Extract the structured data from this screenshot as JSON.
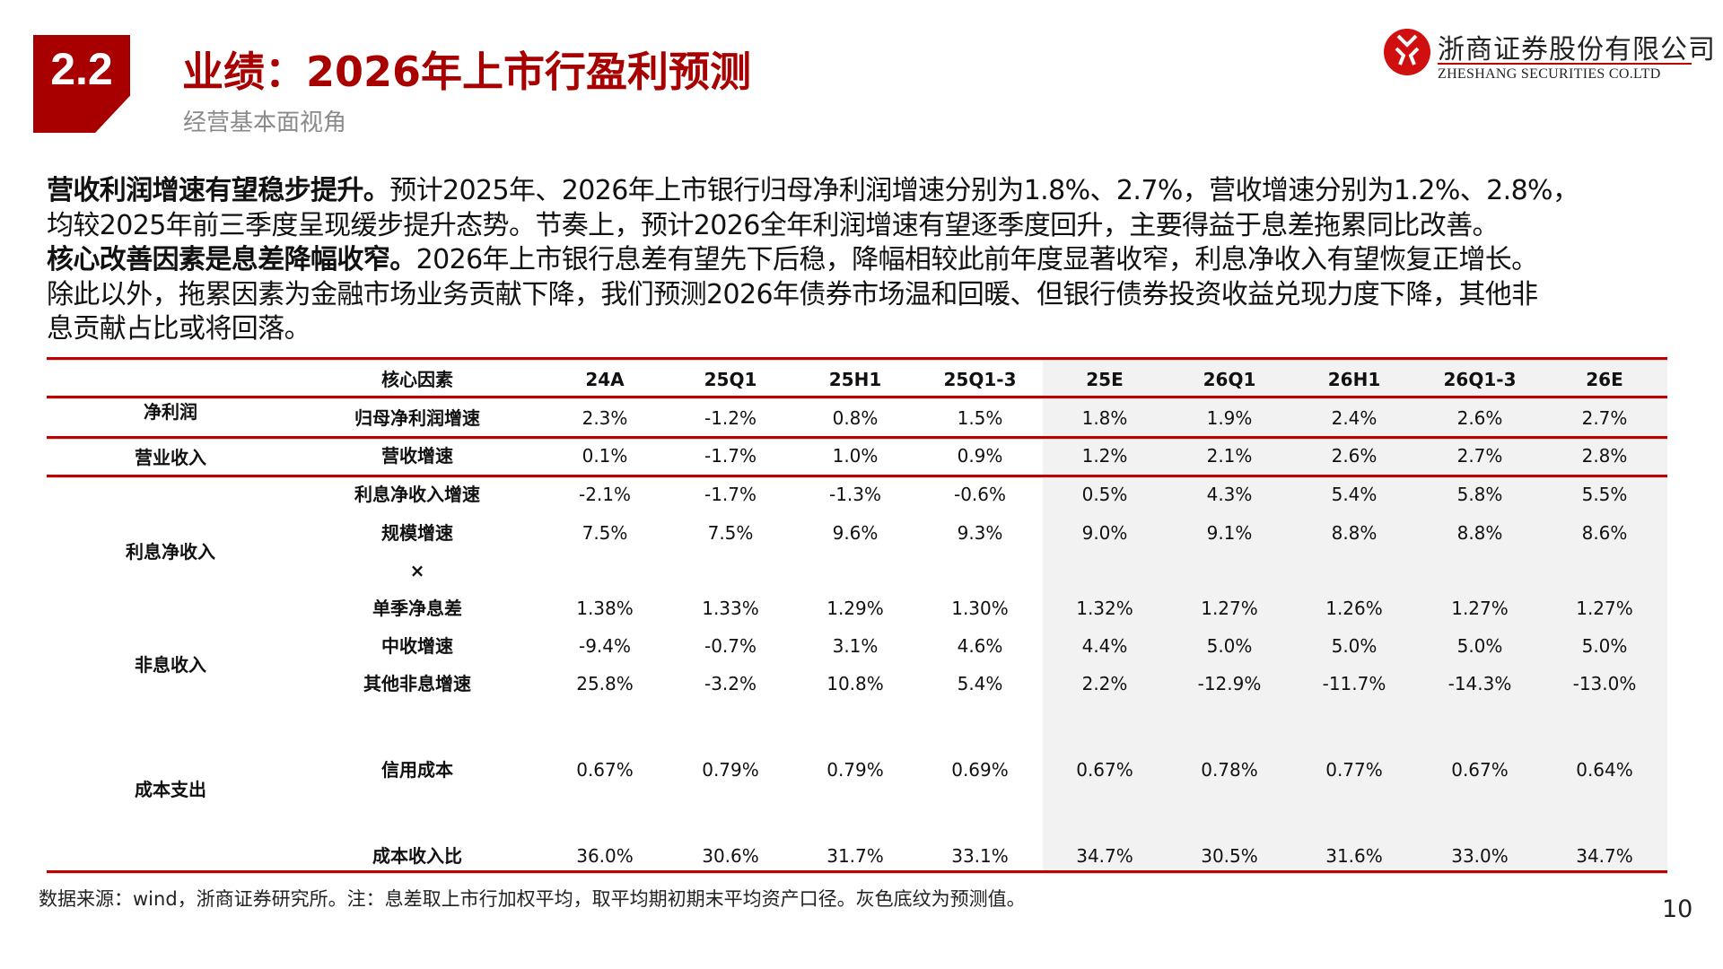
{
  "header": {
    "section_number": "2.2",
    "title": "业绩：2026年上市行盈利预测",
    "subtitle": "经营基本面视角",
    "logo": {
      "cn": "浙商证券股份有限公司",
      "en": "ZHESHANG SECURITIES CO.LTD"
    }
  },
  "body": {
    "lines": [
      {
        "bold": "营收利润增速有望稳步提升。",
        "text": "预计2025年、2026年上市银行归母净利润增速分别为1.8%、2.7%，营收增速分别为1.2%、2.8%，"
      },
      {
        "bold": "",
        "text": "均较2025年前三季度呈现缓步提升态势。节奏上，预计2026全年利润增速有望逐季度回升，主要得益于息差拖累同比改善。"
      },
      {
        "bold": "核心改善因素是息差降幅收窄。",
        "text": "2026年上市银行息差有望先下后稳，降幅相较此前年度显著收窄，利息净收入有望恢复正增长。"
      },
      {
        "bold": "",
        "text": "除此以外，拖累因素为金融市场业务贡献下降，我们预测2026年债券市场温和回暖、但银行债券投资收益兑现力度下降，其他非"
      },
      {
        "bold": "",
        "text": "息贡献占比或将回落。"
      }
    ]
  },
  "table": {
    "factor_header": "核心因素",
    "columns": [
      "24A",
      "25Q1",
      "25H1",
      "25Q1-3",
      "25E",
      "26Q1",
      "26H1",
      "26Q1-3",
      "26E"
    ],
    "categories": [
      "净利润",
      "营业收入",
      "利息净收入",
      "非息收入",
      "成本支出"
    ],
    "rows": [
      {
        "factor": "归母净利润增速",
        "values": [
          "2.3%",
          "-1.2%",
          "0.8%",
          "1.5%",
          "1.8%",
          "1.9%",
          "2.4%",
          "2.6%",
          "2.7%"
        ]
      },
      {
        "factor": "营收增速",
        "values": [
          "0.1%",
          "-1.7%",
          "1.0%",
          "0.9%",
          "1.2%",
          "2.1%",
          "2.6%",
          "2.7%",
          "2.8%"
        ]
      },
      {
        "factor": "利息净收入增速",
        "values": [
          "-2.1%",
          "-1.7%",
          "-1.3%",
          "-0.6%",
          "0.5%",
          "4.3%",
          "5.4%",
          "5.8%",
          "5.5%"
        ]
      },
      {
        "factor": "规模增速",
        "values": [
          "7.5%",
          "7.5%",
          "9.6%",
          "9.3%",
          "9.0%",
          "9.1%",
          "8.8%",
          "8.8%",
          "8.6%"
        ]
      },
      {
        "factor": "×",
        "values": []
      },
      {
        "factor": "单季净息差",
        "values": [
          "1.38%",
          "1.33%",
          "1.29%",
          "1.30%",
          "1.32%",
          "1.27%",
          "1.26%",
          "1.27%",
          "1.27%"
        ]
      },
      {
        "factor": "中收增速",
        "values": [
          "-9.4%",
          "-0.7%",
          "3.1%",
          "4.6%",
          "4.4%",
          "5.0%",
          "5.0%",
          "5.0%",
          "5.0%"
        ]
      },
      {
        "factor": "其他非息增速",
        "values": [
          "25.8%",
          "-3.2%",
          "10.8%",
          "5.4%",
          "2.2%",
          "-12.9%",
          "-11.7%",
          "-14.3%",
          "-13.0%"
        ]
      },
      {
        "factor": "信用成本",
        "values": [
          "0.67%",
          "0.79%",
          "0.79%",
          "0.69%",
          "0.67%",
          "0.78%",
          "0.77%",
          "0.67%",
          "0.64%"
        ]
      },
      {
        "factor": "成本收入比",
        "values": [
          "36.0%",
          "30.6%",
          "31.7%",
          "33.1%",
          "34.7%",
          "30.5%",
          "31.6%",
          "33.0%",
          "34.7%"
        ]
      }
    ]
  },
  "footnote": "数据来源：wind，浙商证券研究所。注：息差取上市行加权平均，取平均期初期末平均资产口径。灰色底纹为预测值。",
  "page_number": "10",
  "colors": {
    "accent": "#a80000",
    "forecast_bg": "#f2f2f2"
  }
}
